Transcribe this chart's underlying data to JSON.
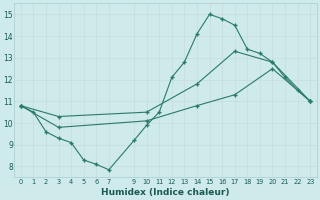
{
  "xlabel": "Humidex (Indice chaleur)",
  "xlim": [
    -0.5,
    23.5
  ],
  "ylim": [
    7.5,
    15.5
  ],
  "xticks": [
    0,
    1,
    2,
    3,
    4,
    5,
    6,
    7,
    9,
    10,
    11,
    12,
    13,
    14,
    15,
    16,
    17,
    18,
    19,
    20,
    21,
    22,
    23
  ],
  "yticks": [
    8,
    9,
    10,
    11,
    12,
    13,
    14,
    15
  ],
  "bg_color": "#ceeaea",
  "line_color": "#2a7a6a",
  "grid_color": "#c0d8d0",
  "line1_x": [
    0,
    1,
    2,
    3,
    4,
    5,
    6,
    7,
    9,
    10,
    11,
    12,
    13,
    14,
    15,
    16,
    17,
    18,
    19,
    20,
    21,
    22,
    23
  ],
  "line1_y": [
    10.8,
    10.5,
    9.6,
    9.3,
    9.1,
    8.3,
    8.1,
    7.85,
    9.2,
    9.9,
    10.5,
    12.1,
    12.8,
    14.1,
    15.0,
    14.8,
    14.5,
    13.4,
    13.2,
    12.8,
    12.1,
    11.5,
    11.0
  ],
  "line2_x": [
    0,
    3,
    10,
    14,
    17,
    20,
    23
  ],
  "line2_y": [
    10.8,
    10.3,
    10.5,
    11.8,
    13.3,
    12.8,
    11.0
  ],
  "line3_x": [
    0,
    3,
    10,
    14,
    17,
    20,
    23
  ],
  "line3_y": [
    10.8,
    9.8,
    10.1,
    10.8,
    11.3,
    12.5,
    11.0
  ]
}
